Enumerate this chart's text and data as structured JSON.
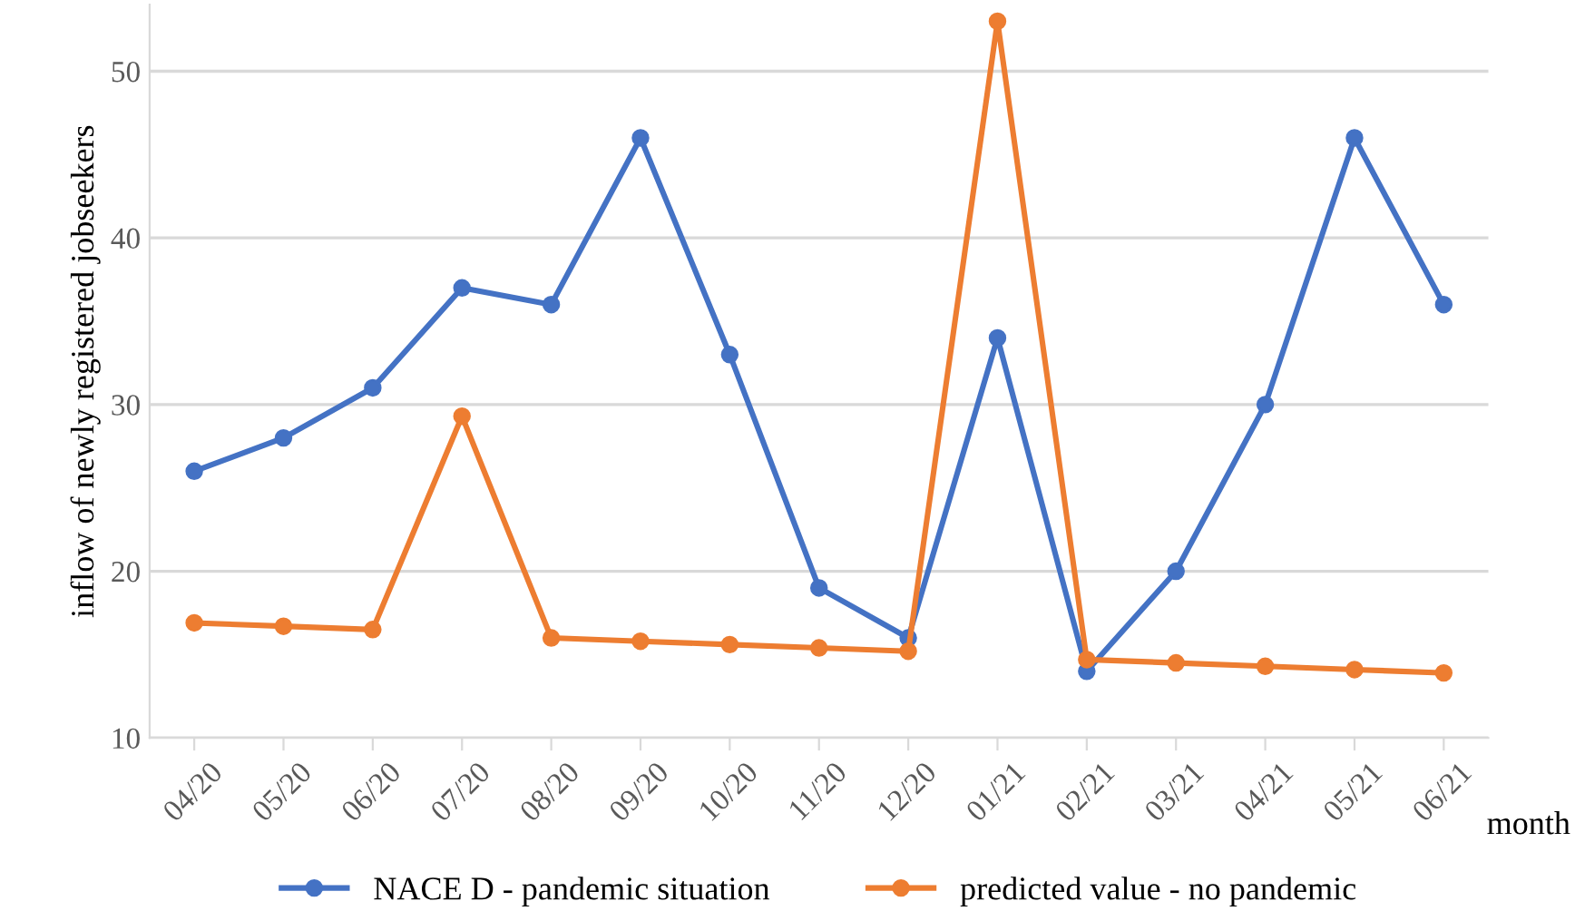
{
  "chart_data": {
    "type": "line",
    "xlabel": "month",
    "ylabel": "inflow of newly registered jobseekers",
    "categories": [
      "04/20",
      "05/20",
      "06/20",
      "07/20",
      "08/20",
      "09/20",
      "10/20",
      "11/20",
      "12/20",
      "01/21",
      "02/21",
      "03/21",
      "04/21",
      "05/21",
      "06/21"
    ],
    "series": [
      {
        "name": "NACE D - pandemic situation",
        "color": "#4472c4",
        "values": [
          26,
          28,
          31,
          37,
          36,
          46,
          33,
          19,
          16,
          34,
          14,
          20,
          30,
          46,
          36
        ]
      },
      {
        "name": "predicted value - no pandemic",
        "color": "#ed7d31",
        "values": [
          16.9,
          16.7,
          16.5,
          29.3,
          16.0,
          15.8,
          15.6,
          15.4,
          15.2,
          53,
          14.7,
          14.5,
          14.3,
          14.1,
          13.9
        ]
      }
    ],
    "ylim": [
      10,
      54
    ],
    "yticks": [
      10,
      20,
      30,
      40,
      50
    ],
    "grid": "y",
    "legend": "bottom",
    "marker": "circle",
    "line_style": "solid"
  }
}
